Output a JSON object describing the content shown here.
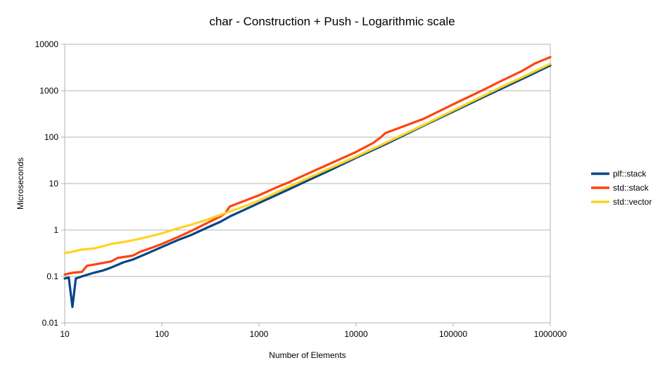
{
  "chart_data": {
    "type": "line",
    "title": "char - Construction + Push - Logarithmic scale",
    "xlabel": "Number of Elements",
    "ylabel": "Microseconds",
    "x_scale": "log",
    "y_scale": "log",
    "xlim": [
      10,
      1000000
    ],
    "ylim": [
      0.01,
      10000
    ],
    "x_ticks": [
      "10",
      "100",
      "1000",
      "10000",
      "100000",
      "1000000"
    ],
    "y_ticks": [
      "0.01",
      "0.1",
      "1",
      "10",
      "100",
      "1000",
      "10000"
    ],
    "grid": "horizontal",
    "legend_position": "right",
    "series": [
      {
        "name": "plf::stack",
        "color": "#004586",
        "points": [
          [
            10,
            0.09
          ],
          [
            11,
            0.095
          ],
          [
            12,
            0.022
          ],
          [
            13,
            0.09
          ],
          [
            15,
            0.1
          ],
          [
            20,
            0.12
          ],
          [
            25,
            0.135
          ],
          [
            30,
            0.155
          ],
          [
            40,
            0.2
          ],
          [
            50,
            0.23
          ],
          [
            70,
            0.31
          ],
          [
            100,
            0.43
          ],
          [
            150,
            0.62
          ],
          [
            200,
            0.78
          ],
          [
            300,
            1.15
          ],
          [
            400,
            1.5
          ],
          [
            500,
            1.95
          ],
          [
            700,
            2.7
          ],
          [
            1000,
            3.8
          ],
          [
            2000,
            7.4
          ],
          [
            3000,
            11
          ],
          [
            5000,
            18
          ],
          [
            10000,
            36
          ],
          [
            20000,
            70
          ],
          [
            50000,
            178
          ],
          [
            100000,
            355
          ],
          [
            200000,
            710
          ],
          [
            300000,
            1060
          ],
          [
            500000,
            1750
          ],
          [
            1000000,
            3500
          ]
        ]
      },
      {
        "name": "std::stack",
        "color": "#ff420e",
        "points": [
          [
            10,
            0.11
          ],
          [
            12,
            0.12
          ],
          [
            15,
            0.125
          ],
          [
            17,
            0.17
          ],
          [
            20,
            0.18
          ],
          [
            30,
            0.21
          ],
          [
            35,
            0.25
          ],
          [
            50,
            0.28
          ],
          [
            60,
            0.34
          ],
          [
            80,
            0.42
          ],
          [
            100,
            0.5
          ],
          [
            150,
            0.72
          ],
          [
            200,
            0.95
          ],
          [
            300,
            1.45
          ],
          [
            400,
            1.95
          ],
          [
            450,
            2.3
          ],
          [
            500,
            3.2
          ],
          [
            700,
            4.2
          ],
          [
            1000,
            5.6
          ],
          [
            1500,
            8.2
          ],
          [
            2000,
            10.5
          ],
          [
            3000,
            15.5
          ],
          [
            5000,
            25
          ],
          [
            10000,
            48
          ],
          [
            15000,
            75
          ],
          [
            18000,
            100
          ],
          [
            20000,
            122
          ],
          [
            50000,
            250
          ],
          [
            100000,
            510
          ],
          [
            200000,
            1020
          ],
          [
            300000,
            1560
          ],
          [
            500000,
            2600
          ],
          [
            700000,
            3900
          ],
          [
            1000000,
            5300
          ]
        ]
      },
      {
        "name": "std::vector",
        "color": "#ffd320",
        "points": [
          [
            10,
            0.32
          ],
          [
            12,
            0.34
          ],
          [
            15,
            0.38
          ],
          [
            20,
            0.4
          ],
          [
            25,
            0.45
          ],
          [
            30,
            0.5
          ],
          [
            40,
            0.55
          ],
          [
            50,
            0.6
          ],
          [
            70,
            0.7
          ],
          [
            100,
            0.85
          ],
          [
            150,
            1.1
          ],
          [
            200,
            1.3
          ],
          [
            300,
            1.7
          ],
          [
            500,
            2.5
          ],
          [
            700,
            3.2
          ],
          [
            1000,
            4.3
          ],
          [
            2000,
            8.4
          ],
          [
            5000,
            20
          ],
          [
            10000,
            38
          ],
          [
            20000,
            75
          ],
          [
            50000,
            185
          ],
          [
            100000,
            375
          ],
          [
            200000,
            760
          ],
          [
            300000,
            1150
          ],
          [
            500000,
            1900
          ],
          [
            1000000,
            3800
          ]
        ]
      }
    ]
  }
}
